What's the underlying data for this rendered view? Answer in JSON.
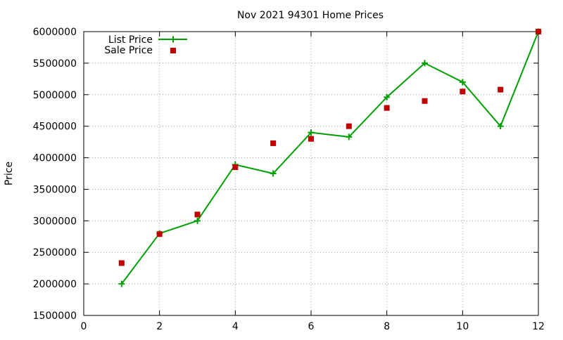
{
  "chart_data": {
    "type": "line",
    "title": "Nov 2021 94301 Home Prices",
    "xlabel": "",
    "ylabel": "Price",
    "xlim": [
      0,
      12
    ],
    "ylim": [
      1500000,
      6000000
    ],
    "xticks": [
      "0",
      "2",
      "4",
      "6",
      "8",
      "10",
      "12"
    ],
    "yticks": [
      "1500000",
      "2000000",
      "2500000",
      "3000000",
      "3500000",
      "4000000",
      "4500000",
      "5000000",
      "5500000",
      "6000000"
    ],
    "grid": true,
    "legend_position": "top-left",
    "colors": {
      "list": "#00a000",
      "sale": "#c00000",
      "grid": "#a0a0a0",
      "axis": "#000000"
    },
    "series": [
      {
        "name": "List Price",
        "style": "line-with-plus-markers",
        "x": [
          1,
          2,
          3,
          4,
          5,
          6,
          7,
          8,
          9,
          10,
          11,
          12
        ],
        "y": [
          2000000,
          2800000,
          3000000,
          3890000,
          3750000,
          4400000,
          4330000,
          4960000,
          5500000,
          5200000,
          4500000,
          6000000
        ]
      },
      {
        "name": "Sale Price",
        "style": "square-markers",
        "x": [
          1,
          2,
          3,
          4,
          5,
          6,
          7,
          8,
          9,
          10,
          11,
          12
        ],
        "y": [
          2330000,
          2790000,
          3100000,
          3850000,
          4230000,
          4300000,
          4500000,
          4790000,
          4900000,
          5050000,
          5080000,
          6000000
        ]
      }
    ]
  }
}
